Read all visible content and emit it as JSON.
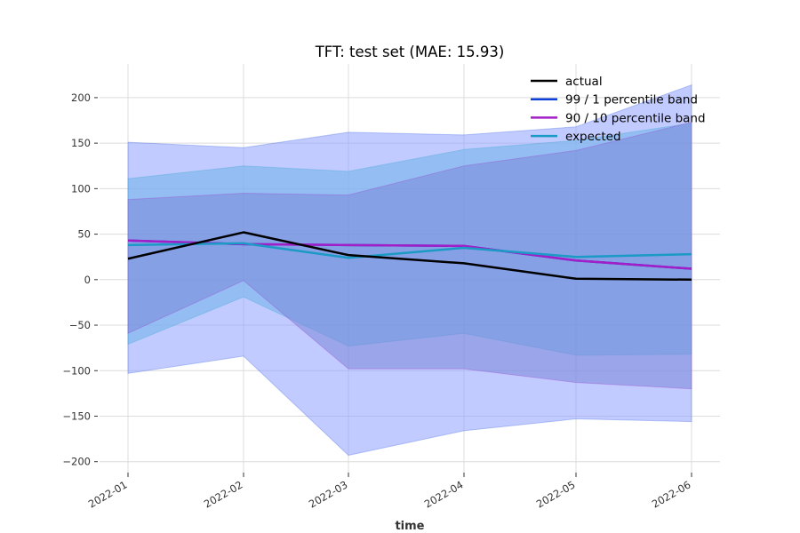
{
  "chart_data": {
    "type": "line",
    "title": "TFT: test set (MAE: 15.93)",
    "xlabel": "time",
    "ylabel": "",
    "x": [
      "2022-01",
      "2022-02",
      "2022-03",
      "2022-04",
      "2022-05",
      "2022-06"
    ],
    "yticks": [
      -200,
      -150,
      -100,
      -50,
      0,
      50,
      100,
      150,
      200
    ],
    "ylim": [
      -212,
      237
    ],
    "grid": true,
    "legend_position": "top-right",
    "series": [
      {
        "name": "actual",
        "color": "#000000",
        "values": [
          23,
          52,
          27,
          18,
          1,
          0
        ]
      },
      {
        "name": "99 / 1 percentile band",
        "color": "#0b3fd8",
        "lower": [
          -103,
          -84,
          -193,
          -166,
          -153,
          -156
        ],
        "upper": [
          151,
          145,
          162,
          159,
          168,
          214
        ],
        "values": [
          43,
          39,
          38,
          37,
          21,
          12
        ]
      },
      {
        "name": "90 / 10 percentile band",
        "color": "#a31ec6",
        "lower": [
          -59,
          -1,
          -98,
          -98,
          -113,
          -120
        ],
        "upper": [
          88,
          95,
          93,
          125,
          142,
          173
        ],
        "values": [
          43,
          39,
          38,
          37,
          21,
          12
        ]
      },
      {
        "name": "expected",
        "color": "#1b9ac5",
        "lower": [
          -71,
          -19,
          -73,
          -59,
          -83,
          -82
        ],
        "upper": [
          111,
          125,
          119,
          143,
          153,
          172
        ],
        "values": [
          38,
          40,
          24,
          35,
          25,
          28
        ]
      }
    ],
    "fill_colors": [
      "#8fa0ff",
      "#6fb4ea",
      "#7a86d8"
    ]
  }
}
